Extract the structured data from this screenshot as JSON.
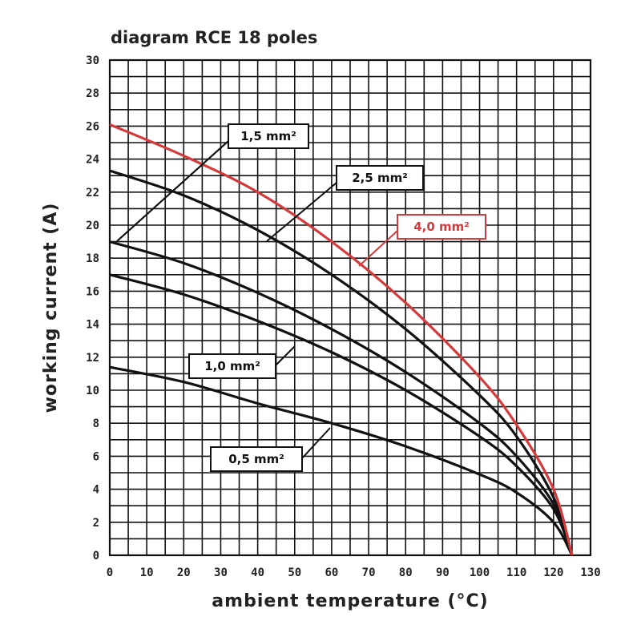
{
  "chart_data": {
    "type": "line",
    "title": "diagram RCE 18 poles",
    "xlabel": "ambient temperature (°C)",
    "ylabel": "working current (A)",
    "xlim": [
      0,
      130
    ],
    "ylim": [
      0,
      30
    ],
    "x_ticks": [
      "0",
      "10",
      "20",
      "30",
      "40",
      "50",
      "60",
      "70",
      "80",
      "90",
      "100",
      "110",
      "120",
      "130"
    ],
    "y_ticks": [
      "0",
      "2",
      "4",
      "6",
      "8",
      "10",
      "12",
      "14",
      "16",
      "18",
      "20",
      "22",
      "24",
      "26",
      "28",
      "30"
    ],
    "grid": true,
    "colors": {
      "grid": "#111111",
      "curve": "#111111",
      "curve_highlight": "#d43a3a"
    },
    "series": [
      {
        "name": "0,5 mm²",
        "color": "#111111",
        "x": [
          0,
          20,
          40,
          60,
          80,
          100,
          110,
          120,
          125
        ],
        "y": [
          11.4,
          10.5,
          9.2,
          8.0,
          6.6,
          4.9,
          3.8,
          2.0,
          0
        ]
      },
      {
        "name": "1,0 mm²",
        "color": "#111111",
        "x": [
          0,
          20,
          40,
          60,
          80,
          100,
          110,
          120,
          125
        ],
        "y": [
          17,
          15.8,
          14.2,
          12.3,
          10.0,
          7.2,
          5.4,
          2.8,
          0
        ]
      },
      {
        "name": "1,5 mm²",
        "color": "#111111",
        "x": [
          0,
          20,
          40,
          60,
          80,
          100,
          110,
          120,
          125
        ],
        "y": [
          19,
          17.7,
          15.9,
          13.7,
          11.1,
          8.0,
          6.0,
          3.1,
          0
        ]
      },
      {
        "name": "2,5 mm²",
        "color": "#111111",
        "x": [
          0,
          20,
          40,
          60,
          80,
          100,
          110,
          120,
          125
        ],
        "y": [
          23.3,
          21.8,
          19.7,
          17.0,
          13.7,
          9.7,
          7.2,
          3.5,
          0
        ]
      },
      {
        "name": "4,0 mm²",
        "color": "#d43a3a",
        "x": [
          0,
          20,
          40,
          60,
          80,
          100,
          110,
          120,
          125
        ],
        "y": [
          26.1,
          24.2,
          22.0,
          19.0,
          15.3,
          10.8,
          7.9,
          4.0,
          0
        ]
      }
    ]
  }
}
